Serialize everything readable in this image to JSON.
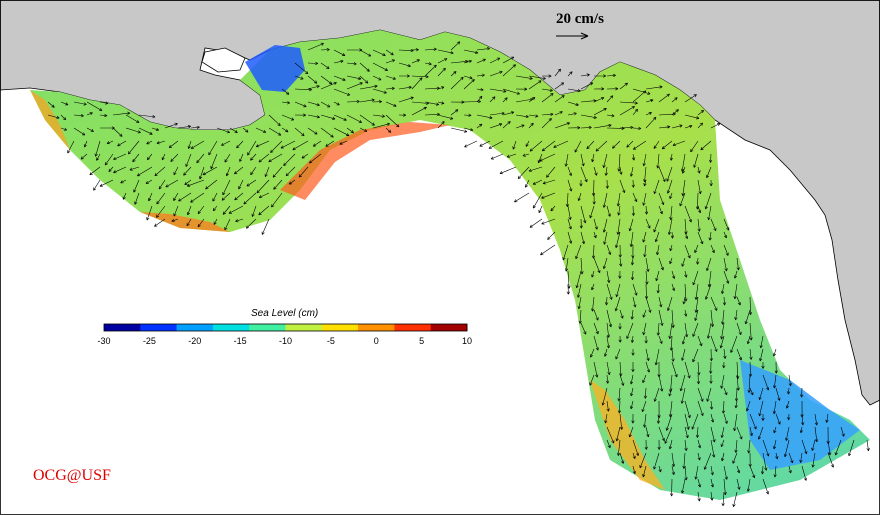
{
  "map": {
    "credit": "OCG@USF",
    "velocity_scale": {
      "label": "20 cm/s"
    },
    "colorbar": {
      "title": "Sea Level (cm)",
      "min": -30,
      "max": 10,
      "ticks": [
        "-30",
        "-25",
        "-20",
        "-15",
        "-10",
        "-5",
        "0",
        "5",
        "10"
      ],
      "colors": [
        "#0000a0",
        "#0032ff",
        "#00a0ff",
        "#00e0e0",
        "#40f0a0",
        "#c0f040",
        "#ffe000",
        "#ff9000",
        "#ff3000",
        "#a00000"
      ]
    },
    "colors": {
      "land": "#c8c8c8",
      "ocean_outside_domain": "#ffffff",
      "vectors": "#000000",
      "credit": "#e00000"
    }
  }
}
